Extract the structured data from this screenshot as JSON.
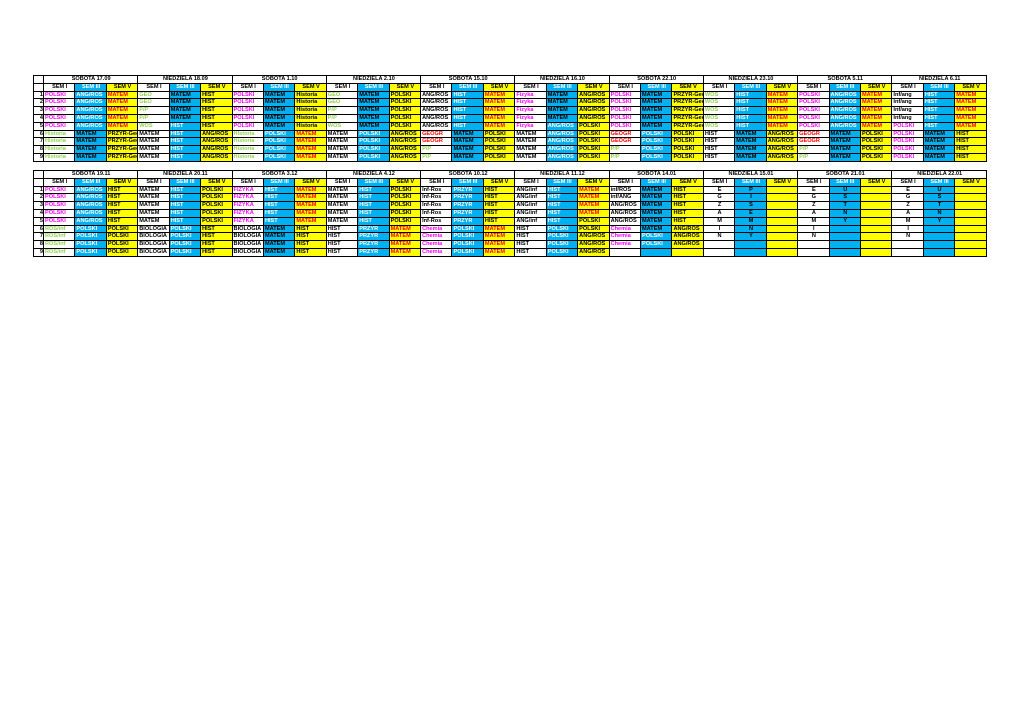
{
  "block1": {
    "dates": [
      "SOBOTA 17.09",
      "NIEDZIELA 18.09",
      "SOBOTA 1.10",
      "NIEDZIELA 2.10",
      "SOBOTA 15.10",
      "NIEDZIELA 16.10",
      "SOBOTA 22.10",
      "NIEDZIELA 23.10",
      "SOBOTA 5.11",
      "NIEDZIELA 6.11"
    ],
    "sems": [
      "SEM I",
      "SEM III",
      "SEM V"
    ],
    "rows": [
      {
        "n": "1",
        "c": [
          "POLSKI",
          "ANG/ROS",
          "MATEM",
          "GEO",
          "MATEM",
          "HIST",
          "POLSKI",
          "MATEM",
          "Historia",
          "GEO",
          "MATEM",
          "POLSKI",
          "ANG/ROS",
          "HIST",
          "MATEM",
          "Fizyka",
          "MATEM",
          "ANG/ROS",
          "POLSKI",
          "MATEM",
          "PRZYR-Geo",
          "WOS",
          "HIST",
          "MATEM",
          "POLSKI",
          "ANG/ROS",
          "MATEM",
          "Inf/ang",
          "HIST",
          "MATEM"
        ]
      },
      {
        "n": "2",
        "c": [
          "POLSKI",
          "ANG/ROS",
          "MATEM",
          "GEO",
          "MATEM",
          "HIST",
          "POLSKI",
          "MATEM",
          "Historia",
          "GEO",
          "MATEM",
          "POLSKI",
          "ANG/ROS",
          "HIST",
          "MATEM",
          "Fizyka",
          "MATEM",
          "ANG/ROS",
          "POLSKI",
          "MATEM",
          "PRZYR-Geo",
          "WOS",
          "HIST",
          "MATEM",
          "POLSKI",
          "ANG/ROS",
          "MATEM",
          "Inf/ang",
          "HIST",
          "MATEM"
        ]
      },
      {
        "n": "3",
        "c": [
          "POLSKI",
          "ANG/ROS",
          "MATEM",
          "P/P",
          "MATEM",
          "HIST",
          "POLSKI",
          "MATEM",
          "Historia",
          "P/P",
          "MATEM",
          "POLSKI",
          "ANG/ROS",
          "HIST",
          "MATEM",
          "Fizyka",
          "MATEM",
          "ANG/ROS",
          "POLSKI",
          "MATEM",
          "PRZYR-Geo",
          "WOS",
          "HIST",
          "MATEM",
          "POLSKI",
          "ANG/ROS",
          "MATEM",
          "Inf/ang",
          "HIST",
          "MATEM"
        ]
      },
      {
        "n": "4",
        "c": [
          "POLSKI",
          "ANG/ROS",
          "MATEM",
          "P/P",
          "MATEM",
          "HIST",
          "POLSKI",
          "MATEM",
          "Historia",
          "P/P",
          "MATEM",
          "POLSKI",
          "ANG/ROS",
          "HIST",
          "MATEM",
          "Fizyka",
          "MATEM",
          "ANG/ROS",
          "POLSKI",
          "MATEM",
          "PRZYR-Geo",
          "WOS",
          "HIST",
          "MATEM",
          "POLSKI",
          "ANG/ROS",
          "MATEM",
          "Inf/ang",
          "HIST",
          "MATEM"
        ]
      },
      {
        "n": "5",
        "c": [
          "POLSKI",
          "ANG/ROS",
          "MATEM",
          "WOS",
          "HIST",
          "HIST",
          "POLSKI",
          "MATEM",
          "Historia",
          "WOS",
          "MATEM",
          "POLSKI",
          "ANG/ROS",
          "HIST",
          "MATEM",
          "Fizyka",
          "ANG/ROS",
          "POLSKI",
          "POLSKI",
          "MATEM",
          "PRZYR-Geo",
          "WOS",
          "HIST",
          "MATEM",
          "POLSKI",
          "ANG/ROS",
          "MATEM",
          "POLSKI",
          "HIST",
          "MATEM"
        ]
      },
      {
        "n": "6",
        "c": [
          "Historia",
          "MATEM",
          "PRZYR-Geo",
          "MATEM",
          "HIST",
          "ANG/ROS",
          "Historia",
          "POLSKI",
          "MATEM",
          "MATEM",
          "POLSKI",
          "ANG/ROS",
          "GEOGR",
          "MATEM",
          "POLSKI",
          "MATEM",
          "ANG/ROS",
          "POLSKI",
          "GEOGR",
          "POLSKI",
          "POLSKI",
          "HIST",
          "MATEM",
          "ANG/ROS",
          "GEOGR",
          "MATEM",
          "POLSKI",
          "POLSKI",
          "MATEM",
          "HIST"
        ]
      },
      {
        "n": "7",
        "c": [
          "Historia",
          "MATEM",
          "PRZYR-Geo",
          "MATEM",
          "HIST",
          "ANG/ROS",
          "Historia",
          "POLSKI",
          "MATEM",
          "MATEM",
          "POLSKI",
          "ANG/ROS",
          "GEOGR",
          "MATEM",
          "POLSKI",
          "MATEM",
          "ANG/ROS",
          "POLSKI",
          "GEOGR",
          "POLSKI",
          "POLSKI",
          "HIST",
          "MATEM",
          "ANG/ROS",
          "GEOGR",
          "MATEM",
          "POLSKI",
          "POLSKI",
          "MATEM",
          "HIST"
        ]
      },
      {
        "n": "8",
        "c": [
          "Historia",
          "MATEM",
          "PRZYR-Geo",
          "MATEM",
          "HIST",
          "ANG/ROS",
          "Historia",
          "POLSKI",
          "MATEM",
          "MATEM",
          "POLSKI",
          "ANG/ROS",
          "P/P",
          "MATEM",
          "POLSKI",
          "MATEM",
          "ANG/ROS",
          "POLSKI",
          "P/P",
          "POLSKI",
          "POLSKI",
          "HIST",
          "MATEM",
          "ANG/ROS",
          "P/P",
          "MATEM",
          "POLSKI",
          "POLSKI",
          "MATEM",
          "HIST"
        ]
      },
      {
        "n": "9",
        "c": [
          "Historia",
          "MATEM",
          "PRZYR-Geo",
          "MATEM",
          "HIST",
          "ANG/ROS",
          "Historia",
          "POLSKI",
          "MATEM",
          "MATEM",
          "POLSKI",
          "ANG/ROS",
          "P/P",
          "MATEM",
          "POLSKI",
          "MATEM",
          "ANG/ROS",
          "POLSKI",
          "P/P",
          "POLSKI",
          "POLSKI",
          "HIST",
          "MATEM",
          "ANG/ROS",
          "P/P",
          "MATEM",
          "POLSKI",
          "POLSKI",
          "MATEM",
          "HIST"
        ]
      }
    ]
  },
  "block2": {
    "dates": [
      "SOBOTA 19.11",
      "NIEDZIELA 20.11",
      "SOBOTA 3.12",
      "NIEDZIELA 4.12",
      "SOBOTA 10.12",
      "NIEDZIELA 11.12",
      "SOBOTA 14.01",
      "NIEDZIELA 15.01",
      "SOBOTA 21.01",
      "NIEDZIELA 22.01"
    ],
    "sems": [
      "SEM I",
      "SEM III",
      "SEM V"
    ],
    "rows": [
      {
        "n": "1",
        "c": [
          "POLSKI",
          "ANG/ROS",
          "HIST",
          "MATEM",
          "HIST",
          "POLSKI",
          "FIZYKA",
          "HIST",
          "MATEM",
          "MATEM",
          "HIST",
          "POLSKI",
          "Inf-Ros",
          "PRZYR",
          "HIST",
          "ANG/inf",
          "HIST",
          "MATEM",
          "inf/ROS",
          "MATEM",
          "HIST",
          "E",
          "P",
          "",
          "E",
          "U",
          "",
          "E",
          "U",
          ""
        ]
      },
      {
        "n": "2",
        "c": [
          "POLSKI",
          "ANG/ROS",
          "HIST",
          "MATEM",
          "HIST",
          "POLSKI",
          "FIZYKA",
          "HIST",
          "MATEM",
          "MATEM",
          "HIST",
          "POLSKI",
          "Inf-Ros",
          "PRZYR",
          "HIST",
          "ANG/inf",
          "HIST",
          "MATEM",
          "inf/ANG",
          "MATEM",
          "HIST",
          "G",
          "I",
          "",
          "G",
          "S",
          "",
          "G",
          "S",
          ""
        ]
      },
      {
        "n": "3",
        "c": [
          "POLSKI",
          "ANG/ROS",
          "HIST",
          "MATEM",
          "HIST",
          "POLSKI",
          "FIZYKA",
          "HIST",
          "MATEM",
          "MATEM",
          "HIST",
          "POLSKI",
          "Inf-Ros",
          "PRZYR",
          "HIST",
          "ANG/inf",
          "HIST",
          "MATEM",
          "ANG/ROS",
          "MATEM",
          "HIST",
          "Z",
          "S",
          "",
          "Z",
          "T",
          "",
          "Z",
          "T",
          ""
        ]
      },
      {
        "n": "4",
        "c": [
          "POLSKI",
          "ANG/ROS",
          "HIST",
          "MATEM",
          "HIST",
          "POLSKI",
          "FIZYKA",
          "HIST",
          "MATEM",
          "MATEM",
          "HIST",
          "POLSKI",
          "Inf-Ros",
          "PRZYR",
          "HIST",
          "ANG/inf",
          "HIST",
          "MATEM",
          "ANG/ROS",
          "MATEM",
          "HIST",
          "A",
          "E",
          "",
          "A",
          "N",
          "",
          "A",
          "N",
          ""
        ]
      },
      {
        "n": "5",
        "c": [
          "POLSKI",
          "ANG/ROS",
          "HIST",
          "MATEM",
          "HIST",
          "POLSKI",
          "FIZYKA",
          "HIST",
          "MATEM",
          "MATEM",
          "HIST",
          "POLSKI",
          "Inf-Ros",
          "PRZYR",
          "HIST",
          "ANG/inf",
          "HIST",
          "POLSKI",
          "ANG/ROS",
          "MATEM",
          "HIST",
          "M",
          "M",
          "",
          "M",
          "Y",
          "",
          "M",
          "Y",
          ""
        ]
      },
      {
        "n": "6",
        "c": [
          "ROS/inf",
          "POLSKI",
          "POLSKI",
          "BIOLOGIA",
          "POLSKI",
          "HIST",
          "BIOLOGIA",
          "MATEM",
          "HIST",
          "HIST",
          "PRZYR",
          "MATEM",
          "Chemia",
          "POLSKI",
          "MATEM",
          "HIST",
          "POLSKI",
          "POLSKI",
          "Chemia",
          "MATEM",
          "ANG/ROS",
          "I",
          "N",
          "",
          "I",
          "",
          "",
          "I",
          "",
          ""
        ]
      },
      {
        "n": "7",
        "c": [
          "ROS/inf",
          "POLSKI",
          "POLSKI",
          "BIOLOGIA",
          "POLSKI",
          "HIST",
          "BIOLOGIA",
          "MATEM",
          "HIST",
          "HIST",
          "PRZYR",
          "MATEM",
          "Chemia",
          "POLSKI",
          "MATEM",
          "HIST",
          "POLSKI",
          "ANG/ROS",
          "Chemia",
          "POLSKI",
          "ANG/ROS",
          "N",
          "Y",
          "",
          "N",
          "",
          "",
          "N",
          "",
          ""
        ]
      },
      {
        "n": "8",
        "c": [
          "ROS/inf",
          "POLSKI",
          "POLSKI",
          "BIOLOGIA",
          "POLSKI",
          "HIST",
          "BIOLOGIA",
          "MATEM",
          "HIST",
          "HIST",
          "PRZYR",
          "MATEM",
          "Chemia",
          "POLSKI",
          "MATEM",
          "HIST",
          "POLSKI",
          "ANG/ROS",
          "Chemia",
          "POLSKI",
          "ANG/ROS",
          "",
          "",
          "",
          "",
          "",
          "",
          "",
          "",
          ""
        ]
      },
      {
        "n": "9",
        "c": [
          "ROS/inf",
          "POLSKI",
          "POLSKI",
          "BIOLOGIA",
          "POLSKI",
          "HIST",
          "BIOLOGIA",
          "MATEM",
          "HIST",
          "HIST",
          "PRZYR",
          "MATEM",
          "Chemia",
          "POLSKI",
          "MATEM",
          "HIST",
          "POLSKI",
          "ANG/ROS",
          "",
          "",
          "",
          "",
          "",
          "",
          "",
          "",
          "",
          "",
          "",
          ""
        ]
      }
    ]
  }
}
